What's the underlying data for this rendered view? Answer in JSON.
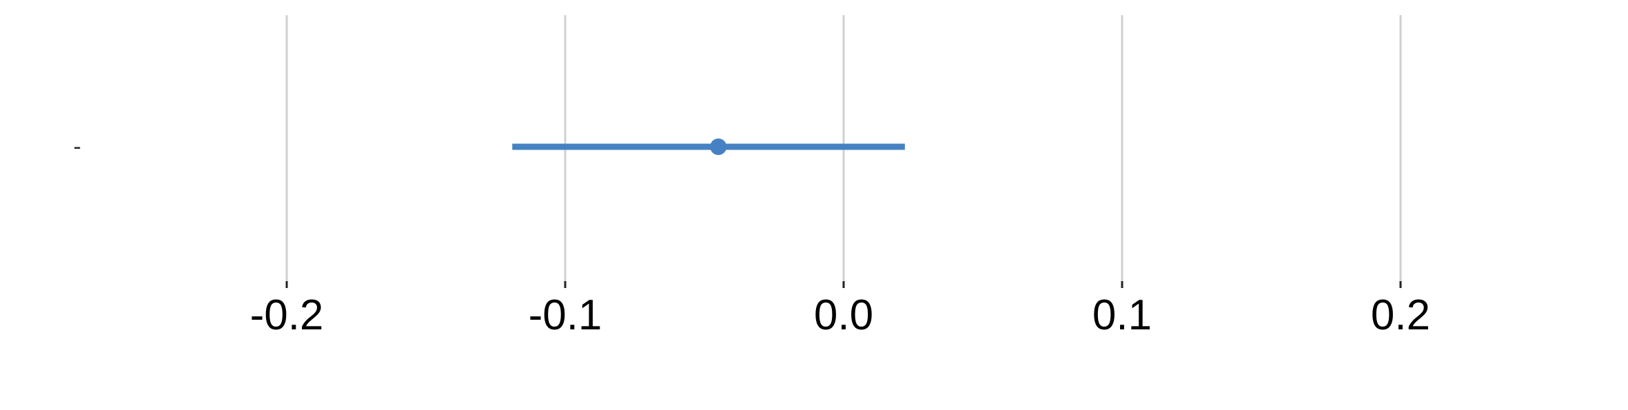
{
  "chart_data": {
    "type": "forest",
    "x_ticks": [
      -0.2,
      -0.1,
      0.0,
      0.1,
      0.2
    ],
    "x_tick_labels": [
      "-0.2",
      "-0.1",
      "0.0",
      "0.1",
      "0.2"
    ],
    "xlim": [
      -0.255,
      0.255
    ],
    "grid": "vertical",
    "rows": [
      {
        "label": "-",
        "estimate": -0.045,
        "ci_low": -0.119,
        "ci_high": 0.022
      }
    ],
    "colors": {
      "series": "#4682c3",
      "grid": "#d0d0d0",
      "tick": "#222222",
      "text": "#000000"
    }
  }
}
